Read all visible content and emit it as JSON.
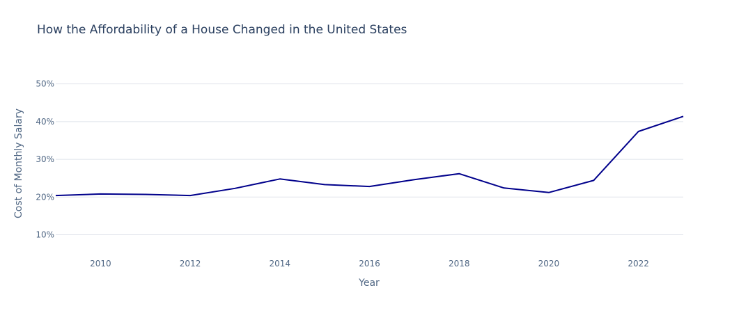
{
  "chart_data": {
    "type": "line",
    "title": "How the Affordability of a House Changed in the United States",
    "xlabel": "Year",
    "ylabel": "Cost of Monthly Salary",
    "x": [
      2009,
      2010,
      2011,
      2012,
      2013,
      2014,
      2015,
      2016,
      2017,
      2018,
      2019,
      2020,
      2021,
      2022,
      2023
    ],
    "series": [
      {
        "values": [
          20.4,
          20.8,
          20.7,
          20.4,
          22.3,
          24.8,
          23.3,
          22.8,
          24.6,
          26.2,
          22.4,
          21.2,
          24.4,
          37.4,
          41.4
        ]
      }
    ],
    "xlim": [
      2009,
      2023
    ],
    "ylim": [
      4,
      54
    ],
    "x_ticks": [
      "2010",
      "2012",
      "2014",
      "2016",
      "2018",
      "2020",
      "2022"
    ],
    "x_tick_values": [
      2010,
      2012,
      2014,
      2016,
      2018,
      2020,
      2022
    ],
    "y_ticks": [
      "10%",
      "20%",
      "30%",
      "40%",
      "50%"
    ],
    "y_tick_values": [
      10,
      20,
      30,
      40,
      50
    ],
    "grid": "horizontal",
    "line_color": "#00008b",
    "grid_color": "#dfe3ea"
  }
}
